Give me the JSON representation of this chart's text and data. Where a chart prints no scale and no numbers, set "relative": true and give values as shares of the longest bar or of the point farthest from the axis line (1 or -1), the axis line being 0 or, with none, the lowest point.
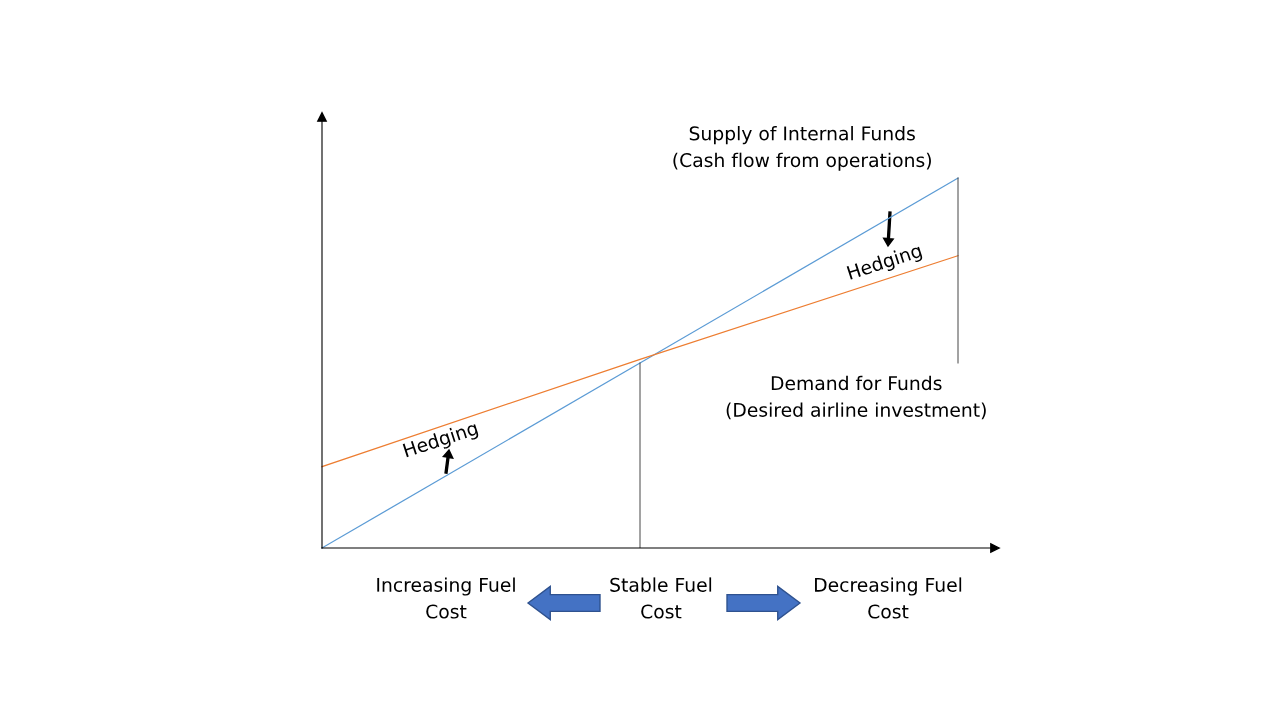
{
  "chart_data": {
    "type": "line",
    "relative": true,
    "categories": [
      null,
      null,
      null
    ],
    "series": [
      {
        "name": "Supply of Internal Funds\n(Cash flow from operations)",
        "color": "#5b9bd5",
        "values": [
          0,
          0.5,
          1
        ]
      },
      {
        "name": "Demand for Funds\n(Desired airline investment)",
        "color": "#ed7d31",
        "values": [
          0.22,
          0.51,
          0.79
        ]
      }
    ],
    "annotations": [
      "Hedging",
      "Hedging",
      "Increasing Fuel\nCost",
      "Stable Fuel\nCost",
      "Decreasing Fuel\nCost"
    ],
    "legend": false,
    "marker": "none",
    "line_style": "solid"
  }
}
